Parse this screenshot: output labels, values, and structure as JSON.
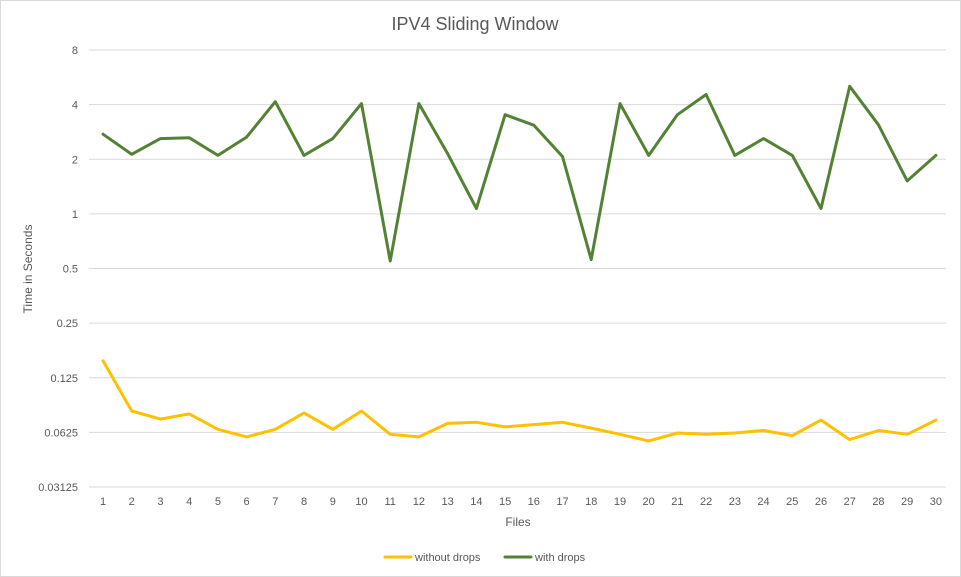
{
  "chart_data": {
    "type": "line",
    "title": "IPV4 Sliding Window",
    "xlabel": "Files",
    "ylabel": "Time in Seconds",
    "y_scale": "log2",
    "ylim": [
      0.03125,
      8
    ],
    "y_ticks": [
      "0.03125",
      "0.0625",
      "0.125",
      "0.25",
      "0.5",
      "1",
      "2",
      "4",
      "8"
    ],
    "categories": [
      "1",
      "2",
      "3",
      "4",
      "5",
      "6",
      "7",
      "8",
      "9",
      "10",
      "11",
      "12",
      "13",
      "14",
      "15",
      "16",
      "17",
      "18",
      "19",
      "20",
      "21",
      "22",
      "23",
      "24",
      "25",
      "26",
      "27",
      "28",
      "29",
      "30"
    ],
    "grid": true,
    "legend_position": "bottom",
    "series": [
      {
        "name": "without drops",
        "color": "#FFC000",
        "values": [
          0.155,
          0.082,
          0.074,
          0.079,
          0.065,
          0.059,
          0.065,
          0.08,
          0.065,
          0.082,
          0.061,
          0.059,
          0.07,
          0.071,
          0.067,
          0.069,
          0.071,
          0.066,
          0.061,
          0.056,
          0.062,
          0.061,
          0.062,
          0.064,
          0.06,
          0.073,
          0.057,
          0.064,
          0.061,
          0.073
        ]
      },
      {
        "name": "with drops",
        "color": "#548235",
        "values": [
          2.75,
          2.13,
          2.6,
          2.63,
          2.1,
          2.65,
          4.15,
          2.1,
          2.6,
          4.05,
          0.55,
          4.05,
          2.15,
          1.07,
          3.52,
          3.08,
          2.07,
          0.56,
          4.05,
          2.1,
          3.52,
          4.55,
          2.1,
          2.6,
          2.1,
          1.07,
          5.05,
          3.1,
          1.52,
          2.1
        ]
      }
    ]
  }
}
